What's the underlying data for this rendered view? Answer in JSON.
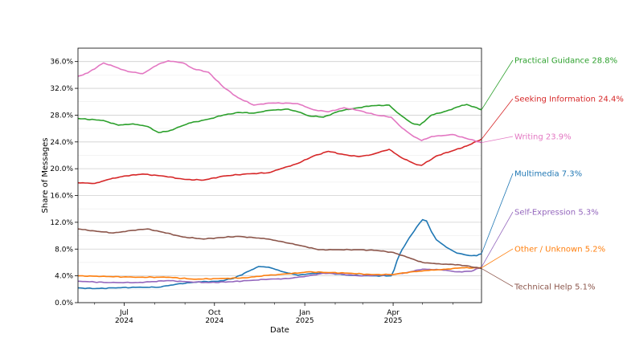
{
  "chart_data": {
    "type": "line",
    "title": "",
    "xlabel": "Date",
    "ylabel": "Share of Messages",
    "ylim": [
      0,
      38
    ],
    "xlim": [
      "2024-05-15",
      "2025-06-30"
    ],
    "grid": "horizontal",
    "legend": "none; series labels at right end of lines",
    "y_ticks": [
      "0.0%",
      "4.0%",
      "8.0%",
      "12.0%",
      "16.0%",
      "20.0%",
      "24.0%",
      "28.0%",
      "32.0%",
      "36.0%"
    ],
    "y_tick_values": [
      0,
      4,
      8,
      12,
      16,
      20,
      24,
      28,
      32,
      36
    ],
    "x_ticks": [
      {
        "date": "2024-07-01",
        "line1": "Jul",
        "line2": "2024"
      },
      {
        "date": "2024-10-01",
        "line1": "Oct",
        "line2": "2024"
      },
      {
        "date": "2025-01-01",
        "line1": "Jan",
        "line2": "2025"
      },
      {
        "date": "2025-04-01",
        "line1": "Apr",
        "line2": "2025"
      }
    ],
    "minor_x_ticks": [
      "2024-06-01",
      "2024-08-01",
      "2024-09-01",
      "2024-11-01",
      "2024-12-01",
      "2025-02-01",
      "2025-03-01",
      "2025-05-01",
      "2025-06-01"
    ],
    "series": [
      {
        "key": "practical",
        "label": "Practical Guidance  28.8%",
        "color": "#2ca02c",
        "points": [
          [
            "2024-05-15",
            27.5
          ],
          [
            "2024-06-10",
            27.2
          ],
          [
            "2024-06-25",
            26.5
          ],
          [
            "2024-07-10",
            26.7
          ],
          [
            "2024-07-25",
            26.3
          ],
          [
            "2024-08-05",
            25.4
          ],
          [
            "2024-08-15",
            25.6
          ],
          [
            "2024-09-05",
            26.8
          ],
          [
            "2024-09-25",
            27.4
          ],
          [
            "2024-10-10",
            28.0
          ],
          [
            "2024-10-25",
            28.4
          ],
          [
            "2024-11-10",
            28.3
          ],
          [
            "2024-11-25",
            28.7
          ],
          [
            "2024-12-15",
            28.9
          ],
          [
            "2024-12-25",
            28.5
          ],
          [
            "2025-01-05",
            27.9
          ],
          [
            "2025-01-20",
            27.7
          ],
          [
            "2025-02-05",
            28.6
          ],
          [
            "2025-02-20",
            29.0
          ],
          [
            "2025-03-10",
            29.4
          ],
          [
            "2025-03-28",
            29.5
          ],
          [
            "2025-04-05",
            28.4
          ],
          [
            "2025-04-20",
            26.8
          ],
          [
            "2025-04-28",
            26.5
          ],
          [
            "2025-05-10",
            28.0
          ],
          [
            "2025-05-25",
            28.6
          ],
          [
            "2025-06-05",
            29.2
          ],
          [
            "2025-06-15",
            29.6
          ],
          [
            "2025-06-30",
            28.8
          ]
        ]
      },
      {
        "key": "seeking",
        "label": "Seeking Information  24.4%",
        "color": "#d62728",
        "points": [
          [
            "2024-05-15",
            17.9
          ],
          [
            "2024-06-01",
            17.8
          ],
          [
            "2024-06-15",
            18.4
          ],
          [
            "2024-07-01",
            18.9
          ],
          [
            "2024-07-20",
            19.2
          ],
          [
            "2024-08-10",
            18.9
          ],
          [
            "2024-09-01",
            18.4
          ],
          [
            "2024-09-20",
            18.3
          ],
          [
            "2024-10-10",
            18.9
          ],
          [
            "2024-11-01",
            19.2
          ],
          [
            "2024-11-25",
            19.4
          ],
          [
            "2024-12-10",
            20.1
          ],
          [
            "2024-12-25",
            20.8
          ],
          [
            "2025-01-10",
            21.9
          ],
          [
            "2025-01-25",
            22.6
          ],
          [
            "2025-02-10",
            22.1
          ],
          [
            "2025-02-25",
            21.8
          ],
          [
            "2025-03-10",
            22.1
          ],
          [
            "2025-03-28",
            22.9
          ],
          [
            "2025-04-10",
            21.6
          ],
          [
            "2025-04-25",
            20.6
          ],
          [
            "2025-04-30",
            20.5
          ],
          [
            "2025-05-15",
            21.9
          ],
          [
            "2025-06-01",
            22.7
          ],
          [
            "2025-06-15",
            23.4
          ],
          [
            "2025-06-30",
            24.4
          ]
        ]
      },
      {
        "key": "writing",
        "label": "Writing  23.9%",
        "color": "#e377c2",
        "points": [
          [
            "2024-05-15",
            33.8
          ],
          [
            "2024-05-25",
            34.3
          ],
          [
            "2024-06-10",
            35.8
          ],
          [
            "2024-06-20",
            35.3
          ],
          [
            "2024-07-05",
            34.5
          ],
          [
            "2024-07-20",
            34.2
          ],
          [
            "2024-08-05",
            35.6
          ],
          [
            "2024-08-15",
            36.1
          ],
          [
            "2024-08-30",
            35.8
          ],
          [
            "2024-09-10",
            34.9
          ],
          [
            "2024-09-25",
            34.4
          ],
          [
            "2024-10-10",
            32.2
          ],
          [
            "2024-10-25",
            30.6
          ],
          [
            "2024-11-10",
            29.5
          ],
          [
            "2024-11-25",
            29.8
          ],
          [
            "2024-12-15",
            29.8
          ],
          [
            "2024-12-25",
            29.7
          ],
          [
            "2025-01-10",
            28.8
          ],
          [
            "2025-01-25",
            28.5
          ],
          [
            "2025-02-10",
            29.1
          ],
          [
            "2025-02-25",
            28.7
          ],
          [
            "2025-03-15",
            28.0
          ],
          [
            "2025-03-30",
            27.7
          ],
          [
            "2025-04-10",
            26.1
          ],
          [
            "2025-04-20",
            25.0
          ],
          [
            "2025-04-30",
            24.2
          ],
          [
            "2025-05-10",
            24.8
          ],
          [
            "2025-06-01",
            25.1
          ],
          [
            "2025-06-15",
            24.5
          ],
          [
            "2025-06-30",
            23.9
          ]
        ]
      },
      {
        "key": "multimedia",
        "label": "Multimedia  7.3%",
        "color": "#1f77b4",
        "points": [
          [
            "2024-05-15",
            2.2
          ],
          [
            "2024-06-01",
            2.1
          ],
          [
            "2024-06-20",
            2.2
          ],
          [
            "2024-07-15",
            2.3
          ],
          [
            "2024-08-05",
            2.3
          ],
          [
            "2024-08-25",
            2.8
          ],
          [
            "2024-09-15",
            3.1
          ],
          [
            "2024-10-05",
            3.2
          ],
          [
            "2024-10-20",
            3.6
          ],
          [
            "2024-11-05",
            4.7
          ],
          [
            "2024-11-15",
            5.4
          ],
          [
            "2024-11-25",
            5.3
          ],
          [
            "2024-12-10",
            4.6
          ],
          [
            "2024-12-25",
            4.1
          ],
          [
            "2025-01-10",
            4.4
          ],
          [
            "2025-01-25",
            4.4
          ],
          [
            "2025-02-15",
            4.1
          ],
          [
            "2025-03-10",
            4.0
          ],
          [
            "2025-03-30",
            4.0
          ],
          [
            "2025-04-02",
            4.9
          ],
          [
            "2025-04-05",
            6.3
          ],
          [
            "2025-04-10",
            7.9
          ],
          [
            "2025-04-15",
            9.1
          ],
          [
            "2025-04-20",
            10.2
          ],
          [
            "2025-04-25",
            11.3
          ],
          [
            "2025-05-01",
            12.4
          ],
          [
            "2025-05-05",
            12.2
          ],
          [
            "2025-05-10",
            10.6
          ],
          [
            "2025-05-15",
            9.4
          ],
          [
            "2025-05-25",
            8.3
          ],
          [
            "2025-06-05",
            7.4
          ],
          [
            "2025-06-15",
            7.1
          ],
          [
            "2025-06-25",
            7.0
          ],
          [
            "2025-06-30",
            7.3
          ]
        ]
      },
      {
        "key": "selfexpr",
        "label": "Self-Expression  5.3%",
        "color": "#9467bd",
        "points": [
          [
            "2024-05-15",
            3.2
          ],
          [
            "2024-06-15",
            3.0
          ],
          [
            "2024-07-15",
            3.0
          ],
          [
            "2024-08-15",
            3.3
          ],
          [
            "2024-09-05",
            3.1
          ],
          [
            "2024-09-25",
            3.0
          ],
          [
            "2024-10-15",
            3.1
          ],
          [
            "2024-11-05",
            3.3
          ],
          [
            "2024-11-25",
            3.5
          ],
          [
            "2024-12-15",
            3.6
          ],
          [
            "2025-01-05",
            4.0
          ],
          [
            "2025-01-20",
            4.4
          ],
          [
            "2025-02-05",
            4.3
          ],
          [
            "2025-02-25",
            4.0
          ],
          [
            "2025-03-15",
            4.1
          ],
          [
            "2025-04-01",
            4.2
          ],
          [
            "2025-04-15",
            4.5
          ],
          [
            "2025-05-01",
            5.0
          ],
          [
            "2025-05-20",
            4.9
          ],
          [
            "2025-06-05",
            4.6
          ],
          [
            "2025-06-20",
            4.7
          ],
          [
            "2025-06-30",
            5.3
          ]
        ]
      },
      {
        "key": "other",
        "label": "Other / Unknown  5.2%",
        "color": "#ff7f0e",
        "points": [
          [
            "2024-05-15",
            4.0
          ],
          [
            "2024-06-15",
            3.9
          ],
          [
            "2024-07-15",
            3.8
          ],
          [
            "2024-08-15",
            3.8
          ],
          [
            "2024-09-10",
            3.5
          ],
          [
            "2024-10-05",
            3.6
          ],
          [
            "2024-11-01",
            3.7
          ],
          [
            "2024-11-25",
            4.1
          ],
          [
            "2024-12-15",
            4.3
          ],
          [
            "2025-01-05",
            4.6
          ],
          [
            "2025-01-25",
            4.5
          ],
          [
            "2025-02-15",
            4.4
          ],
          [
            "2025-03-10",
            4.2
          ],
          [
            "2025-04-01",
            4.2
          ],
          [
            "2025-04-20",
            4.6
          ],
          [
            "2025-05-05",
            4.8
          ],
          [
            "2025-05-25",
            5.0
          ],
          [
            "2025-06-10",
            5.2
          ],
          [
            "2025-06-30",
            5.2
          ]
        ]
      },
      {
        "key": "technical",
        "label": "Technical Help  5.1%",
        "color": "#8c564b",
        "points": [
          [
            "2024-05-15",
            11.0
          ],
          [
            "2024-06-01",
            10.7
          ],
          [
            "2024-06-20",
            10.4
          ],
          [
            "2024-07-10",
            10.8
          ],
          [
            "2024-07-25",
            11.0
          ],
          [
            "2024-08-10",
            10.5
          ],
          [
            "2024-08-30",
            9.8
          ],
          [
            "2024-09-20",
            9.5
          ],
          [
            "2024-10-05",
            9.7
          ],
          [
            "2024-10-25",
            9.9
          ],
          [
            "2024-11-10",
            9.7
          ],
          [
            "2024-11-25",
            9.5
          ],
          [
            "2024-12-15",
            8.9
          ],
          [
            "2025-01-01",
            8.4
          ],
          [
            "2025-01-15",
            7.9
          ],
          [
            "2025-02-05",
            7.9
          ],
          [
            "2025-02-25",
            7.9
          ],
          [
            "2025-03-15",
            7.8
          ],
          [
            "2025-04-01",
            7.5
          ],
          [
            "2025-04-15",
            6.8
          ],
          [
            "2025-05-01",
            6.0
          ],
          [
            "2025-05-15",
            5.8
          ],
          [
            "2025-06-01",
            5.7
          ],
          [
            "2025-06-15",
            5.5
          ],
          [
            "2025-06-30",
            5.1
          ]
        ]
      }
    ]
  }
}
